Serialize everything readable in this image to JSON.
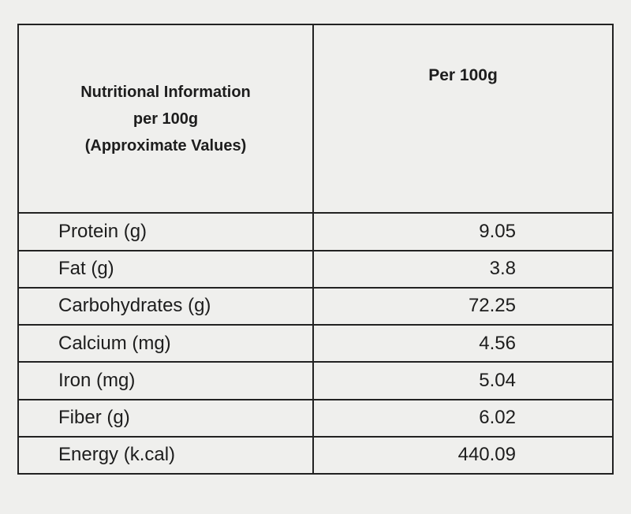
{
  "header": {
    "title_lines": [
      "Nutritional Information",
      "per 100g",
      "(Approximate Values)"
    ],
    "column": "Per 100g"
  },
  "table": {
    "rows": [
      [
        "Protein (g)",
        9.05
      ],
      [
        "Fat (g)",
        3.8
      ],
      [
        "Carbohydrates (g)",
        72.25
      ],
      [
        "Calcium (mg)",
        4.56
      ],
      [
        "Iron (mg)",
        5.04
      ],
      [
        "Fiber (g)",
        6.02
      ],
      [
        "Energy (k.cal)",
        440.09
      ]
    ]
  }
}
